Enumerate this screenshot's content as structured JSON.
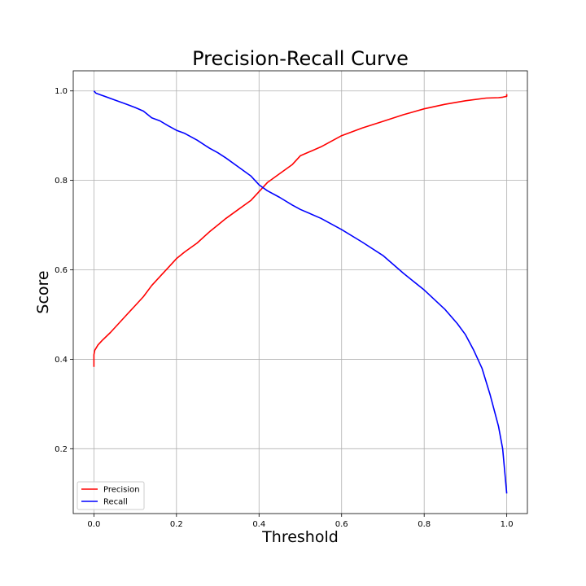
{
  "chart_data": {
    "type": "line",
    "title": "Precision-Recall Curve",
    "xlabel": "Threshold",
    "ylabel": "Score",
    "xlim": [
      -0.05,
      1.05
    ],
    "ylim": [
      0.055,
      1.045
    ],
    "x_ticks": [
      "0.0",
      "0.2",
      "0.4",
      "0.6",
      "0.8",
      "1.0"
    ],
    "y_ticks": [
      "0.2",
      "0.4",
      "0.6",
      "0.8",
      "1.0"
    ],
    "grid": true,
    "legend_position": "lower-left",
    "series": [
      {
        "name": "Precision",
        "color": "#ff0000",
        "x": [
          0.0,
          0.0,
          0.002,
          0.01,
          0.02,
          0.04,
          0.06,
          0.08,
          0.1,
          0.12,
          0.14,
          0.16,
          0.18,
          0.2,
          0.22,
          0.25,
          0.28,
          0.3,
          0.32,
          0.35,
          0.38,
          0.4,
          0.42,
          0.45,
          0.48,
          0.5,
          0.55,
          0.6,
          0.65,
          0.7,
          0.75,
          0.8,
          0.85,
          0.9,
          0.95,
          0.98,
          0.99,
          1.0,
          1.0
        ],
        "y": [
          0.383,
          0.41,
          0.42,
          0.432,
          0.442,
          0.46,
          0.48,
          0.5,
          0.52,
          0.54,
          0.565,
          0.585,
          0.605,
          0.625,
          0.64,
          0.66,
          0.685,
          0.7,
          0.715,
          0.735,
          0.755,
          0.775,
          0.795,
          0.815,
          0.835,
          0.855,
          0.875,
          0.9,
          0.917,
          0.932,
          0.947,
          0.96,
          0.97,
          0.978,
          0.984,
          0.985,
          0.986,
          0.988,
          0.993
        ]
      },
      {
        "name": "Recall",
        "color": "#0000ff",
        "x": [
          0.0,
          0.005,
          0.02,
          0.05,
          0.08,
          0.1,
          0.12,
          0.14,
          0.16,
          0.18,
          0.2,
          0.22,
          0.25,
          0.28,
          0.3,
          0.32,
          0.35,
          0.38,
          0.4,
          0.42,
          0.45,
          0.48,
          0.5,
          0.55,
          0.6,
          0.65,
          0.7,
          0.75,
          0.8,
          0.85,
          0.88,
          0.9,
          0.92,
          0.94,
          0.96,
          0.98,
          0.99,
          0.995,
          1.0
        ],
        "y": [
          1.0,
          0.995,
          0.99,
          0.98,
          0.97,
          0.963,
          0.955,
          0.94,
          0.933,
          0.922,
          0.912,
          0.905,
          0.89,
          0.872,
          0.862,
          0.85,
          0.83,
          0.81,
          0.79,
          0.777,
          0.762,
          0.745,
          0.735,
          0.715,
          0.69,
          0.662,
          0.632,
          0.592,
          0.555,
          0.512,
          0.48,
          0.455,
          0.42,
          0.38,
          0.32,
          0.25,
          0.2,
          0.15,
          0.1
        ]
      }
    ]
  }
}
